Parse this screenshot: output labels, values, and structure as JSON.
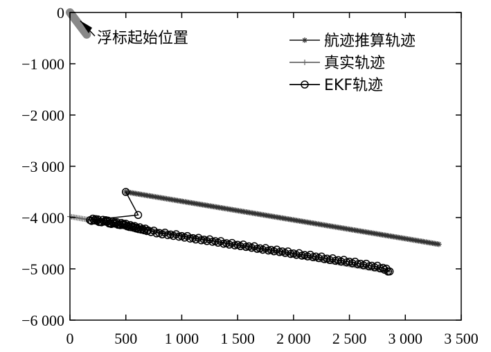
{
  "chart_data": {
    "type": "line",
    "title": "",
    "xlabel": "",
    "ylabel": "",
    "xlim": [
      0,
      3500
    ],
    "ylim": [
      -6000,
      0
    ],
    "x_ticks": [
      0,
      500,
      1000,
      1500,
      2000,
      2500,
      3000,
      3500
    ],
    "x_tick_labels": [
      "0",
      "500",
      "1 000",
      "1 500",
      "2 000",
      "2 500",
      "3 000",
      "3 500"
    ],
    "y_ticks": [
      0,
      -1000,
      -2000,
      -3000,
      -4000,
      -5000,
      -6000
    ],
    "y_tick_labels": [
      "0",
      "−1 000",
      "−2 000",
      "−3 000",
      "−4 000",
      "−5 000",
      "−6 000"
    ],
    "grid": false,
    "legend_position": "top-right",
    "series": [
      {
        "name": "航迹推算轨迹",
        "marker": "asterisk",
        "color": "#333333",
        "x": [
          500,
          3300
        ],
        "y": [
          -3500,
          -4520
        ],
        "density": 200
      },
      {
        "name": "真实轨迹",
        "marker": "plus",
        "color": "#666666",
        "x": [
          0,
          2860
        ],
        "y": [
          -3980,
          -5050
        ],
        "density": 200
      },
      {
        "name": "EKF轨迹",
        "marker": "circle",
        "color": "#000000",
        "x": [
          500,
          610,
          180,
          230,
          270,
          320,
          360,
          400,
          440,
          480,
          520,
          560,
          600,
          650,
          700,
          800,
          900,
          1000,
          1100,
          1200,
          1300,
          1400,
          1500,
          1600,
          1700,
          1800,
          1900,
          2000,
          2100,
          2200,
          2300,
          2400,
          2500,
          2600,
          2700,
          2800,
          2860
        ],
        "y": [
          -3500,
          -3950,
          -4050,
          -4030,
          -4080,
          -4050,
          -4110,
          -4090,
          -4130,
          -4120,
          -4160,
          -4170,
          -4200,
          -4220,
          -4250,
          -4300,
          -4330,
          -4360,
          -4400,
          -4430,
          -4460,
          -4500,
          -4530,
          -4560,
          -4600,
          -4630,
          -4660,
          -4700,
          -4730,
          -4760,
          -4800,
          -4830,
          -4860,
          -4900,
          -4940,
          -4980,
          -5050
        ]
      }
    ],
    "annotation": {
      "text": "浮标起始位置",
      "x": 0,
      "y": 0
    }
  }
}
